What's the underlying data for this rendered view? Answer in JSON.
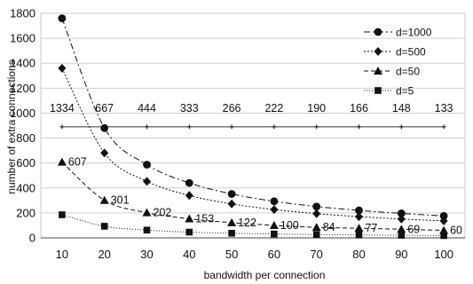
{
  "chart_data": {
    "type": "line",
    "xlabel": "bandwidth per connection",
    "ylabel": "number of extra connections",
    "x": [
      10,
      20,
      30,
      40,
      50,
      60,
      70,
      80,
      90,
      100
    ],
    "xlim": [
      5,
      105
    ],
    "ylim": [
      0,
      1800
    ],
    "yticks": [
      0,
      200,
      400,
      600,
      800,
      1000,
      1200,
      1400,
      1600,
      1800
    ],
    "legend_position": "top-right",
    "series": [
      {
        "name": "d=1000",
        "marker": "circle",
        "dash": "7,3,2,3",
        "values": [
          1760,
          880,
          587,
          440,
          352,
          293,
          251,
          220,
          196,
          176
        ]
      },
      {
        "name": "d=500",
        "marker": "diamond",
        "dash": "2,2",
        "values": [
          1360,
          680,
          453,
          340,
          272,
          227,
          194,
          170,
          151,
          136
        ]
      },
      {
        "name": "d=50",
        "marker": "triangle",
        "dash": "5,3",
        "values": [
          607,
          301,
          202,
          153,
          122,
          100,
          84,
          77,
          69,
          60
        ]
      },
      {
        "name": "d=5",
        "marker": "square",
        "dash": "1,2",
        "values": [
          185,
          93,
          62,
          46,
          37,
          31,
          26,
          23,
          21,
          18
        ]
      }
    ],
    "reference_line": {
      "value": 890,
      "marker": "plus",
      "labels": [
        "1334",
        "667",
        "444",
        "333",
        "266",
        "222",
        "190",
        "166",
        "148",
        "133"
      ]
    },
    "annotations": [
      "607",
      "301",
      "202",
      "153",
      "122",
      "100",
      "84",
      "77",
      "69",
      "60"
    ]
  }
}
